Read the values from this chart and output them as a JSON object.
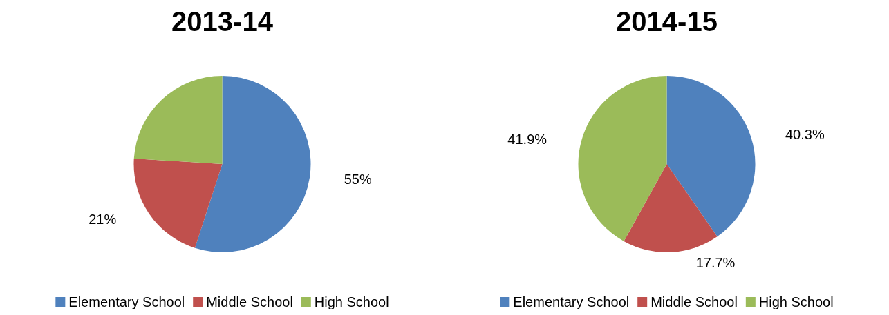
{
  "chart_data": [
    {
      "type": "pie",
      "title": "2013-14",
      "categories": [
        "Elementary School",
        "Middle School",
        "High School"
      ],
      "values": [
        55,
        21,
        24
      ],
      "colors": [
        "#4f81bd",
        "#c0504d",
        "#9bbb59"
      ],
      "value_labels": [
        "55%",
        "21%",
        null
      ],
      "legend": "bottom"
    },
    {
      "type": "pie",
      "title": "2014-15",
      "categories": [
        "Elementary School",
        "Middle School",
        "High School"
      ],
      "values": [
        40.3,
        17.7,
        41.9
      ],
      "colors": [
        "#4f81bd",
        "#c0504d",
        "#9bbb59"
      ],
      "value_labels": [
        "40.3%",
        "17.7%",
        "41.9%"
      ],
      "legend": "bottom"
    }
  ]
}
